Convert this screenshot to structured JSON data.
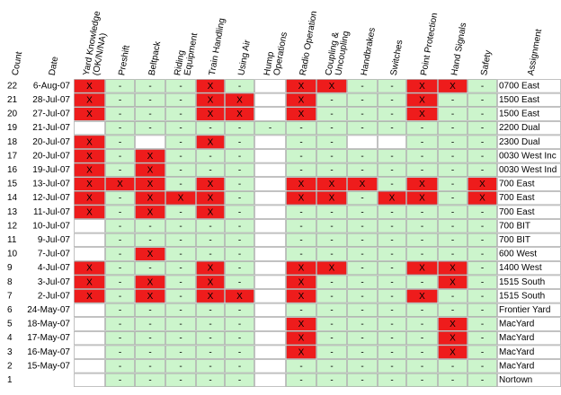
{
  "headers": [
    {
      "lines": [
        "Count"
      ]
    },
    {
      "lines": [
        "Date"
      ]
    },
    {
      "lines": [
        "Yard Knowledge",
        "(OK/N/NA)"
      ]
    },
    {
      "lines": [
        "Preshift"
      ]
    },
    {
      "lines": [
        "Beltpack"
      ]
    },
    {
      "lines": [
        "Riding",
        "Equipment"
      ]
    },
    {
      "lines": [
        "Train Handling"
      ]
    },
    {
      "lines": [
        "Using Air"
      ]
    },
    {
      "lines": [
        "Hump",
        "Operations"
      ]
    },
    {
      "lines": [
        "Radio Operation"
      ]
    },
    {
      "lines": [
        "Coupling &",
        "Uncoupling"
      ]
    },
    {
      "lines": [
        "Handbrakes"
      ]
    },
    {
      "lines": [
        "Switches"
      ]
    },
    {
      "lines": [
        "Point Protection"
      ]
    },
    {
      "lines": [
        "Hand Signals"
      ]
    },
    {
      "lines": [
        "Safety"
      ]
    },
    {
      "lines": [
        "Assignment"
      ]
    }
  ],
  "rows": [
    {
      "count": "22",
      "date": "6-Aug-07",
      "cells": [
        "X",
        "-",
        "-",
        "-",
        "X",
        "-",
        null,
        "X",
        "X",
        "-",
        "-",
        "X",
        "X",
        "-"
      ],
      "assignment": "0700 East"
    },
    {
      "count": "21",
      "date": "28-Jul-07",
      "cells": [
        "X",
        "-",
        "-",
        "-",
        "X",
        "X",
        null,
        "X",
        "-",
        "-",
        "-",
        "X",
        "-",
        "-"
      ],
      "assignment": "1500 East"
    },
    {
      "count": "20",
      "date": "27-Jul-07",
      "cells": [
        "X",
        "-",
        "-",
        "-",
        "X",
        "X",
        null,
        "X",
        "-",
        "-",
        "-",
        "X",
        "-",
        "-"
      ],
      "assignment": "1500 East"
    },
    {
      "count": "19",
      "date": "21-Jul-07",
      "cells": [
        null,
        "-",
        "-",
        "-",
        "-",
        "-",
        "-",
        "-",
        "-",
        "-",
        "-",
        "-",
        "-",
        "-"
      ],
      "assignment": "2200 Dual"
    },
    {
      "count": "18",
      "date": "20-Jul-07",
      "cells": [
        "X",
        "-",
        null,
        "-",
        "X",
        "-",
        null,
        "-",
        "-",
        null,
        null,
        "-",
        "-",
        "-"
      ],
      "assignment": "2300 Dual"
    },
    {
      "count": "17",
      "date": "20-Jul-07",
      "cells": [
        "X",
        "-",
        "X",
        "-",
        "-",
        "-",
        null,
        "-",
        "-",
        "-",
        "-",
        "-",
        "-",
        "-"
      ],
      "assignment": "0030 West Inc"
    },
    {
      "count": "16",
      "date": "19-Jul-07",
      "cells": [
        "X",
        "-",
        "X",
        "-",
        "-",
        "-",
        null,
        "-",
        "-",
        "-",
        "-",
        "-",
        "-",
        "-"
      ],
      "assignment": "0030 West Ind"
    },
    {
      "count": "15",
      "date": "13-Jul-07",
      "cells": [
        "X",
        "X",
        "X",
        "-",
        "X",
        "-",
        null,
        "X",
        "X",
        "X",
        "-",
        "X",
        "-",
        "X"
      ],
      "assignment": "700 East"
    },
    {
      "count": "14",
      "date": "12-Jul-07",
      "cells": [
        "X",
        "-",
        "X",
        "X",
        "X",
        "-",
        null,
        "X",
        "X",
        "-",
        "X",
        "X",
        "-",
        "X"
      ],
      "assignment": "700 East"
    },
    {
      "count": "13",
      "date": "11-Jul-07",
      "cells": [
        "X",
        "-",
        "X",
        "-",
        "X",
        "-",
        null,
        "-",
        "-",
        "-",
        "-",
        "-",
        "-",
        "-"
      ],
      "assignment": "700 East"
    },
    {
      "count": "12",
      "date": "10-Jul-07",
      "cells": [
        null,
        "-",
        "-",
        "-",
        "-",
        "-",
        null,
        "-",
        "-",
        "-",
        "-",
        "-",
        "-",
        "-"
      ],
      "assignment": "700 BIT"
    },
    {
      "count": "11",
      "date": "9-Jul-07",
      "cells": [
        null,
        "-",
        "-",
        "-",
        "-",
        "-",
        null,
        "-",
        "-",
        "-",
        "-",
        "-",
        "-",
        "-"
      ],
      "assignment": "700 BIT"
    },
    {
      "count": "10",
      "date": "7-Jul-07",
      "cells": [
        null,
        "-",
        "X",
        "-",
        "-",
        "-",
        null,
        "-",
        "-",
        "-",
        "-",
        "-",
        "-",
        "-"
      ],
      "assignment": "600 West"
    },
    {
      "count": "9",
      "date": "4-Jul-07",
      "cells": [
        "X",
        "-",
        "-",
        "-",
        "X",
        "-",
        null,
        "X",
        "X",
        "-",
        "-",
        "X",
        "X",
        "-"
      ],
      "assignment": "1400 West"
    },
    {
      "count": "8",
      "date": "3-Jul-07",
      "cells": [
        "X",
        "-",
        "X",
        "-",
        "X",
        "-",
        null,
        "X",
        "-",
        "-",
        "-",
        "-",
        "X",
        "-"
      ],
      "assignment": "1515 South"
    },
    {
      "count": "7",
      "date": "2-Jul-07",
      "cells": [
        "X",
        "-",
        "X",
        "-",
        "X",
        "X",
        null,
        "X",
        "-",
        "-",
        "-",
        "X",
        "-",
        "-"
      ],
      "assignment": "1515 South"
    },
    {
      "count": "6",
      "date": "24-May-07",
      "cells": [
        null,
        "-",
        "-",
        "-",
        "-",
        "-",
        null,
        "-",
        "-",
        "-",
        "-",
        "-",
        "-",
        "-"
      ],
      "assignment": "Frontier Yard"
    },
    {
      "count": "5",
      "date": "18-May-07",
      "cells": [
        null,
        "-",
        "-",
        "-",
        "-",
        "-",
        null,
        "X",
        "-",
        "-",
        "-",
        "-",
        "X",
        "-"
      ],
      "assignment": "MacYard"
    },
    {
      "count": "4",
      "date": "17-May-07",
      "cells": [
        null,
        "-",
        "-",
        "-",
        "-",
        "-",
        null,
        "X",
        "-",
        "-",
        "-",
        "-",
        "X",
        "-"
      ],
      "assignment": "MacYard"
    },
    {
      "count": "3",
      "date": "16-May-07",
      "cells": [
        null,
        "-",
        "-",
        "-",
        "-",
        "-",
        null,
        "X",
        "-",
        "-",
        "-",
        "-",
        "X",
        "-"
      ],
      "assignment": "MacYard"
    },
    {
      "count": "2",
      "date": "15-May-07",
      "cells": [
        null,
        "-",
        "-",
        "-",
        "-",
        "-",
        null,
        "-",
        "-",
        "-",
        "-",
        "-",
        "-",
        "-"
      ],
      "assignment": "MacYard"
    },
    {
      "count": "1",
      "date": null,
      "cells": [
        null,
        "-",
        "-",
        "-",
        "-",
        "-",
        null,
        "-",
        "-",
        "-",
        "-",
        "-",
        "-",
        "-"
      ],
      "assignment": "Nortown"
    }
  ]
}
